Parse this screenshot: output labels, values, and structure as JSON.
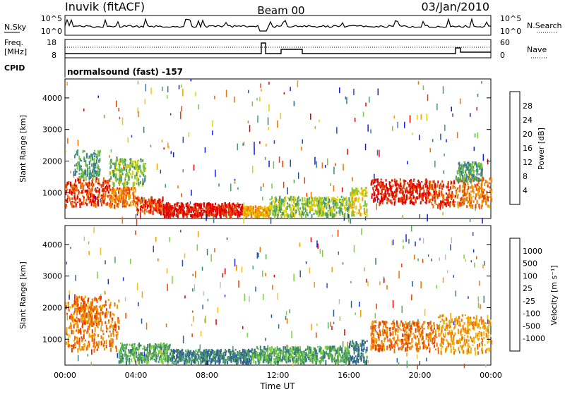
{
  "header": {
    "station": "Inuvik (fitACF)",
    "beam": "Beam 00",
    "date": "03/Jan/2010"
  },
  "nsky_panel": {
    "left_label": "N.Sky",
    "left_ticks": [
      "10^5",
      "10^0"
    ],
    "right_label": "N.Search",
    "right_ticks": [
      "10^5",
      "10^0"
    ]
  },
  "freq_panel": {
    "left_label_1": "Freq.",
    "left_label_2": "[MHz]",
    "left_ticks": [
      "18",
      "8"
    ],
    "right_label": "Nave",
    "right_ticks": [
      "60",
      "0"
    ]
  },
  "cpid_panel": {
    "label": "CPID",
    "text": "normalsound (fast) -157"
  },
  "chart_data": [
    {
      "type": "heatmap",
      "name": "power",
      "ylabel": "Slant Range [km]",
      "yticks": [
        1000,
        2000,
        3000,
        4000
      ],
      "ylim": [
        180,
        4600
      ],
      "xlim": [
        0,
        24
      ],
      "colorbar": {
        "label": "Power [dB]",
        "ticks": [
          "4",
          "8",
          "12",
          "16",
          "20",
          "24",
          "28"
        ],
        "colors": [
          "#0a1cf0",
          "#2b4fa8",
          "#3d7a96",
          "#4a9a6a",
          "#7cc63a",
          "#e8d000",
          "#f0a000",
          "#f07000",
          "#e84000",
          "#e00000"
        ]
      },
      "patches": [
        {
          "t": [
            0.0,
            0.5
          ],
          "r": [
            600,
            1400
          ],
          "level": 8
        },
        {
          "t": [
            0.5,
            2.5
          ],
          "r": [
            650,
            1500
          ],
          "level": 8
        },
        {
          "t": [
            2.5,
            4.0
          ],
          "r": [
            600,
            1200
          ],
          "level": 7
        },
        {
          "t": [
            4.0,
            5.5
          ],
          "r": [
            400,
            900
          ],
          "level": 8
        },
        {
          "t": [
            5.5,
            10.0
          ],
          "r": [
            300,
            700
          ],
          "level": 9
        },
        {
          "t": [
            10.0,
            11.5
          ],
          "r": [
            300,
            600
          ],
          "level": 6
        },
        {
          "t": [
            11.5,
            16.0
          ],
          "r": [
            300,
            900
          ],
          "level": 4
        },
        {
          "t": [
            16.0,
            17.0
          ],
          "r": [
            300,
            1200
          ],
          "level": 5
        },
        {
          "t": [
            17.2,
            20.5
          ],
          "r": [
            700,
            1450
          ],
          "level": 9
        },
        {
          "t": [
            20.5,
            22.0
          ],
          "r": [
            600,
            1400
          ],
          "level": 8
        },
        {
          "t": [
            22.0,
            24.0
          ],
          "r": [
            600,
            1500
          ],
          "level": 7
        },
        {
          "t": [
            0.5,
            2.0
          ],
          "r": [
            1500,
            2400
          ],
          "level": 3
        },
        {
          "t": [
            2.5,
            4.5
          ],
          "r": [
            1300,
            2100
          ],
          "level": 4
        },
        {
          "t": [
            22.0,
            23.5
          ],
          "r": [
            1400,
            2000
          ],
          "level": 3
        }
      ]
    },
    {
      "type": "heatmap",
      "name": "velocity",
      "xlabel": "Time UT",
      "ylabel": "Slant Range [km]",
      "xticks": [
        "00:00",
        "04:00",
        "08:00",
        "12:00",
        "16:00",
        "20:00",
        "00:00"
      ],
      "yticks": [
        1000,
        2000,
        3000,
        4000
      ],
      "ylim": [
        180,
        4600
      ],
      "xlim": [
        0,
        24
      ],
      "colorbar": {
        "label": "Velocity [m s⁻¹]",
        "ticks": [
          "1000",
          "500",
          "100",
          "25",
          "-25",
          "-100",
          "-500",
          "-1000"
        ],
        "colors": [
          "#1a2fd0",
          "#2f5aa0",
          "#3b7d7a",
          "#52a85a",
          "#7cd23a",
          "#bdbdbd",
          "#f0c020",
          "#f0a000",
          "#f07000",
          "#e84000",
          "#e00000"
        ]
      },
      "patches": [
        {
          "t": [
            0.0,
            3.0
          ],
          "r": [
            700,
            2300
          ],
          "level": 8
        },
        {
          "t": [
            3.0,
            6.0
          ],
          "r": [
            300,
            900
          ],
          "level": 3
        },
        {
          "t": [
            6.0,
            10.5
          ],
          "r": [
            300,
            700
          ],
          "level": 2
        },
        {
          "t": [
            10.5,
            16.0
          ],
          "r": [
            300,
            800
          ],
          "level": 3
        },
        {
          "t": [
            16.0,
            17.0
          ],
          "r": [
            300,
            1000
          ],
          "level": 2
        },
        {
          "t": [
            17.2,
            21.0
          ],
          "r": [
            700,
            1600
          ],
          "level": 8
        },
        {
          "t": [
            21.0,
            24.0
          ],
          "r": [
            600,
            1800
          ],
          "level": 7
        },
        {
          "t": [
            0.5,
            2.0
          ],
          "r": [
            1500,
            2400
          ],
          "level": 8
        }
      ]
    }
  ]
}
